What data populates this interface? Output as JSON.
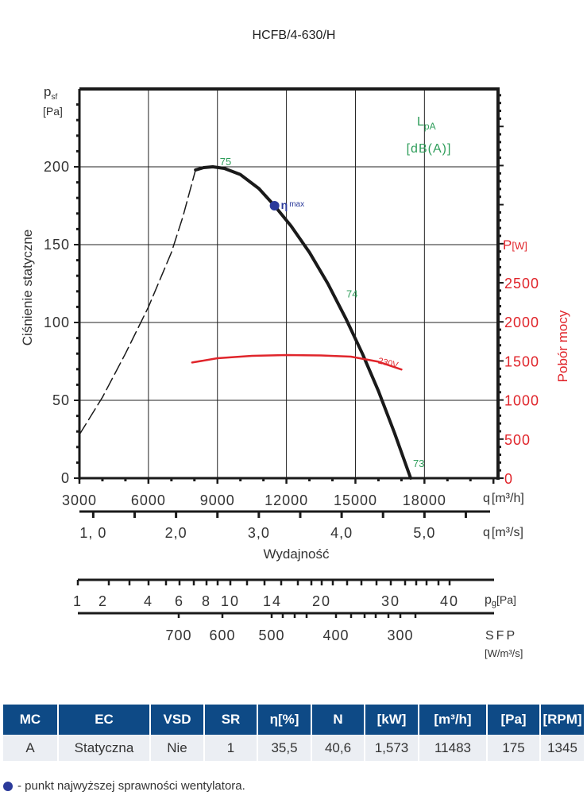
{
  "chart_data": {
    "type": "line",
    "title": "HCFB/4-630/H",
    "ylabel": "Ciśnienie statyczne",
    "y_unit_symbol": "p",
    "y_unit_sub": "sf",
    "y_unit": "[Pa]",
    "ylim": [
      0,
      250
    ],
    "yticks": [
      "0",
      "50",
      "100",
      "150",
      "200"
    ],
    "ytick_values": [
      0,
      50,
      100,
      150,
      200
    ],
    "xlabel": "Wydajność",
    "xlim": [
      3000,
      21200
    ],
    "xticks_m3h": [
      "3000",
      "6000",
      "9000",
      "12000",
      "15000",
      "18000"
    ],
    "xtick_values_m3h": [
      3000,
      6000,
      9000,
      12000,
      15000,
      18000
    ],
    "x_unit_m3h": "q",
    "x_unit_m3h_rest": "[m³/h]",
    "xticks_m3s": [
      "1, 0",
      "2,0",
      "3,0",
      "4,0",
      "5,0"
    ],
    "xtick_values_m3s": [
      1.0,
      2.0,
      3.0,
      4.0,
      5.0
    ],
    "x_unit_m3s": "q",
    "x_unit_m3s_rest": "[m³/s]",
    "right_axis": {
      "label": "Pobór mocy",
      "unit": "P",
      "unit_bracket": "[W]",
      "ticks": [
        "0",
        "500",
        "1000",
        "1500",
        "2000",
        "2500"
      ],
      "tick_values": [
        0,
        500,
        1000,
        1500,
        2000,
        2500
      ],
      "ylim": [
        0,
        4980
      ]
    },
    "sound_label": "L",
    "sound_label_sub": "pA",
    "sound_unit": "[dB(A)]",
    "series": [
      {
        "name": "pressure-curve",
        "style": "solid",
        "color": "#1a1a1a",
        "x": [
          8050,
          8400,
          8800,
          9300,
          10000,
          10800,
          11483,
          12200,
          13000,
          13800,
          14600,
          15300,
          16000,
          16700,
          17400
        ],
        "y": [
          198,
          199.5,
          200,
          199,
          195,
          186,
          175,
          162,
          145,
          125,
          102,
          80,
          56,
          29,
          0
        ]
      },
      {
        "name": "system-curve-dashed",
        "style": "dashed",
        "color": "#1a1a1a",
        "x": [
          3000,
          4000,
          5000,
          6000,
          7000,
          7500,
          8050
        ],
        "y": [
          28,
          52,
          80,
          110,
          145,
          168,
          198
        ]
      },
      {
        "name": "power-230V",
        "axis": "right",
        "color": "#e0252b",
        "label": "230V",
        "x": [
          7900,
          9000,
          10500,
          12000,
          13500,
          14800,
          16000,
          17000
        ],
        "y": [
          1480,
          1535,
          1565,
          1575,
          1570,
          1555,
          1490,
          1390
        ]
      }
    ],
    "annotations": [
      {
        "text": "75",
        "x": 9000,
        "y": 200,
        "color": "#2e9d5a"
      },
      {
        "text": "74",
        "x": 14500,
        "y": 115,
        "color": "#2e9d5a"
      },
      {
        "text": "73",
        "x": 17400,
        "y": 6,
        "color": "#2e9d5a"
      }
    ],
    "eta_max": {
      "x": 11483,
      "y": 175,
      "label_symbol": "η",
      "label_sub": "max",
      "color": "#2b3a9a"
    },
    "pg_scale": {
      "label": "p",
      "label_sub": "g",
      "unit": "[Pa]",
      "ticks": [
        "1",
        "2",
        "4",
        "6",
        "8",
        "10",
        "14",
        "20",
        "30",
        "40"
      ]
    },
    "sfp_scale": {
      "label": "SFP",
      "unit": "[W/m³/s]",
      "ticks": [
        "700",
        "600",
        "500",
        "400",
        "300"
      ]
    },
    "grid": true
  },
  "table": {
    "headers": [
      "MC",
      "EC",
      "VSD",
      "SR",
      "η[%]",
      "N",
      "[kW]",
      "[m³/h]",
      "[Pa]",
      "[RPM]"
    ],
    "row": [
      "A",
      "Statyczna",
      "Nie",
      "1",
      "35,5",
      "40,6",
      "1,573",
      "11483",
      "175",
      "1345"
    ]
  },
  "legend_note": "- punkt najwyższej sprawności wentylatora.",
  "colors": {
    "header_bg": "#0e4a86",
    "row_bg": "#ebeef3",
    "green": "#2e9d5a",
    "red": "#e0252b",
    "blue_dot": "#2b3a9a"
  }
}
